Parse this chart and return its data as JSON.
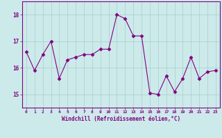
{
  "x": [
    0,
    1,
    2,
    3,
    4,
    5,
    6,
    7,
    8,
    9,
    10,
    11,
    12,
    13,
    14,
    15,
    16,
    17,
    18,
    19,
    20,
    21,
    22,
    23
  ],
  "y": [
    16.6,
    15.9,
    16.5,
    17.0,
    15.6,
    16.3,
    16.4,
    16.5,
    16.5,
    16.7,
    16.7,
    18.0,
    17.85,
    17.2,
    17.2,
    15.05,
    15.0,
    15.7,
    15.1,
    15.6,
    16.4,
    15.6,
    15.85,
    15.9
  ],
  "line_color": "#800080",
  "marker": "D",
  "marker_size": 2.5,
  "bg_color": "#cceaea",
  "grid_color": "#aacccc",
  "xlabel": "Windchill (Refroidissement éolien,°C)",
  "ylabel_ticks": [
    15,
    16,
    17,
    18
  ],
  "ylim": [
    14.5,
    18.5
  ],
  "xlim": [
    -0.5,
    23.5
  ],
  "xticks": [
    0,
    1,
    2,
    3,
    4,
    5,
    6,
    7,
    8,
    9,
    10,
    11,
    12,
    13,
    14,
    15,
    16,
    17,
    18,
    19,
    20,
    21,
    22,
    23
  ],
  "tick_color": "#800080",
  "label_color": "#800080",
  "axis_color": "#800080",
  "spine_color": "#800080"
}
